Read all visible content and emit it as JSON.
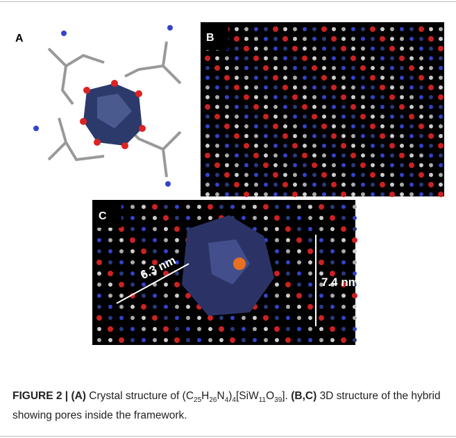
{
  "figure": {
    "panel_a_label": "A",
    "panel_b_label": "B",
    "panel_c_label": "C",
    "pore_width_1": "6.3 nm",
    "pore_width_2": "7.4 nm"
  },
  "caption": {
    "figure_label": "FIGURE 2 |",
    "a_label": "(A)",
    "a_text": "Crystal structure of ",
    "formula": [
      "(C",
      "25",
      "H",
      "26",
      "N",
      "4",
      ")",
      "4",
      "[SiW",
      "11",
      "O",
      "39",
      "]."
    ],
    "bc_label": "(B,C)",
    "bc_text": "3D structure of the hybrid showing pores inside the framework."
  }
}
